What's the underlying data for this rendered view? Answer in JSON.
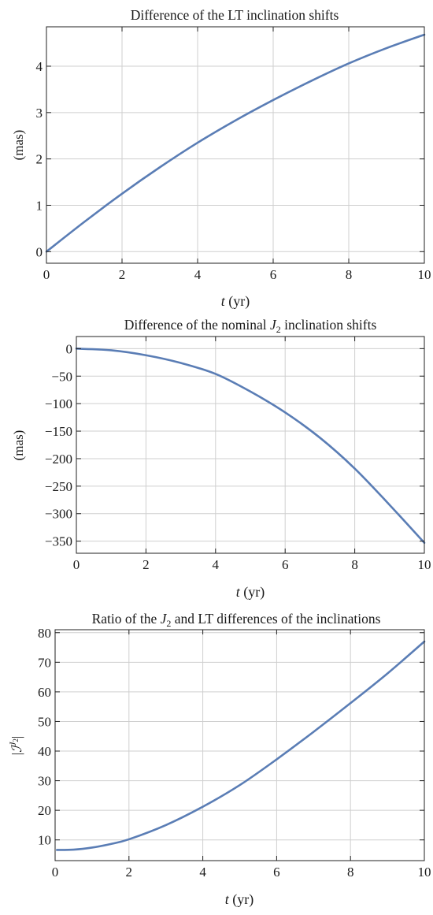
{
  "colors": {
    "series": "#5a7db5",
    "grid": "#cfcfcf",
    "frame": "#222222"
  },
  "chart_data": [
    {
      "type": "line",
      "title": "Difference of the LT inclination shifts",
      "xlabel": {
        "var": "t",
        "unit": " (yr)"
      },
      "ylabel": "(mas)",
      "xlim": [
        0,
        10
      ],
      "ylim": [
        -0.25,
        4.85
      ],
      "xticks": [
        0,
        2,
        4,
        6,
        8,
        10
      ],
      "yticks": [
        0,
        1,
        2,
        3,
        4
      ],
      "xtick_labels": [
        "0",
        "2",
        "4",
        "6",
        "8",
        "10"
      ],
      "ytick_labels": [
        "0",
        "1",
        "2",
        "3",
        "4"
      ],
      "grid": true,
      "series": [
        {
          "x": [
            0,
            1,
            2,
            3,
            4,
            5,
            6,
            7,
            8,
            9,
            10
          ],
          "y": [
            0,
            0.64,
            1.25,
            1.82,
            2.35,
            2.83,
            3.27,
            3.68,
            4.06,
            4.39,
            4.68
          ]
        }
      ]
    },
    {
      "type": "line",
      "title": {
        "pre": "Difference of the nominal ",
        "sym": "J",
        "sub": "2",
        "post": " inclination shifts"
      },
      "xlabel": {
        "var": "t",
        "unit": " (yr)"
      },
      "ylabel": "(mas)",
      "xlim": [
        0,
        10
      ],
      "ylim": [
        -372,
        22
      ],
      "xticks": [
        0,
        2,
        4,
        6,
        8,
        10
      ],
      "yticks": [
        0,
        -50,
        -100,
        -150,
        -200,
        -250,
        -300,
        -350
      ],
      "xtick_labels": [
        "0",
        "2",
        "4",
        "6",
        "8",
        "10"
      ],
      "ytick_labels": [
        "0",
        "−50",
        "−100",
        "−150",
        "−200",
        "−250",
        "−300",
        "−350"
      ],
      "grid": true,
      "series": [
        {
          "x": [
            0,
            1,
            2,
            3,
            4,
            5,
            6,
            7,
            8,
            9,
            10
          ],
          "y": [
            0,
            -3,
            -12,
            -26,
            -46,
            -78,
            -116,
            -162,
            -218,
            -284,
            -353
          ]
        }
      ]
    },
    {
      "type": "line",
      "title": {
        "pre": "Ratio of the ",
        "sym": "J",
        "sub": "2",
        "post": " and LT differences of the inclinations"
      },
      "xlabel": {
        "var": "t",
        "unit": " (yr)"
      },
      "ylabel": {
        "pre": "|",
        "sym": "ℐ",
        "sup": "J",
        "supsub": "2",
        "post": "|"
      },
      "xlim": [
        0,
        10
      ],
      "ylim": [
        3,
        81
      ],
      "xticks": [
        0,
        2,
        4,
        6,
        8,
        10
      ],
      "yticks": [
        10,
        20,
        30,
        40,
        50,
        60,
        70,
        80
      ],
      "xtick_labels": [
        "0",
        "2",
        "4",
        "6",
        "8",
        "10"
      ],
      "ytick_labels": [
        "10",
        "20",
        "30",
        "40",
        "50",
        "60",
        "70",
        "80"
      ],
      "grid": true,
      "series": [
        {
          "x": [
            0.05,
            0.5,
            1,
            1.5,
            2,
            3,
            4,
            5,
            6,
            7,
            8,
            9,
            10
          ],
          "y": [
            6.6,
            6.7,
            7.4,
            8.6,
            10.2,
            15.0,
            21.2,
            28.5,
            37.2,
            46.5,
            56.2,
            66.2,
            77.0
          ]
        }
      ]
    }
  ]
}
